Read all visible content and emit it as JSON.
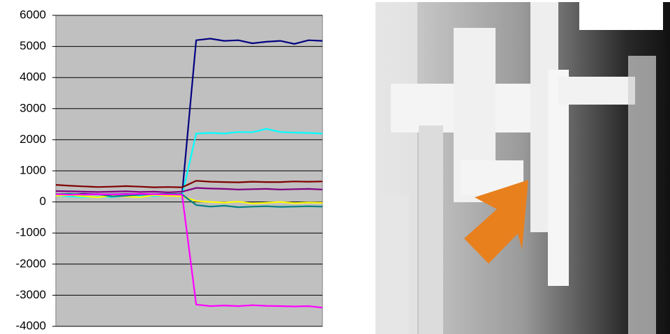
{
  "chart_data": {
    "type": "line",
    "categories": [
      null,
      null,
      null,
      null,
      null,
      null,
      null,
      null,
      null,
      null,
      null,
      null,
      null,
      null,
      null,
      null,
      null,
      null,
      null,
      null
    ],
    "series": [
      {
        "color": "#000080",
        "values": [
          250,
          240,
          260,
          250,
          245,
          255,
          250,
          240,
          260,
          250,
          5200,
          5250,
          5180,
          5200,
          5100,
          5150,
          5180,
          5080,
          5200,
          5180
        ]
      },
      {
        "color": "#00ffff",
        "values": [
          200,
          180,
          150,
          170,
          160,
          200,
          180,
          190,
          210,
          200,
          2200,
          2220,
          2200,
          2250,
          2240,
          2350,
          2250,
          2230,
          2220,
          2200
        ]
      },
      {
        "color": "#800000",
        "values": [
          550,
          520,
          500,
          480,
          490,
          510,
          490,
          470,
          480,
          470,
          680,
          650,
          640,
          630,
          650,
          640,
          640,
          660,
          650,
          660
        ]
      },
      {
        "color": "#800080",
        "values": [
          350,
          340,
          330,
          320,
          330,
          340,
          320,
          330,
          310,
          330,
          450,
          430,
          420,
          400,
          410,
          420,
          400,
          410,
          420,
          400
        ]
      },
      {
        "color": "#ffff00",
        "values": [
          200,
          220,
          180,
          150,
          200,
          180,
          150,
          220,
          200,
          180,
          30,
          0,
          -20,
          10,
          -50,
          -30,
          0,
          -40,
          -20,
          -30
        ]
      },
      {
        "color": "#008080",
        "values": [
          250,
          260,
          230,
          250,
          180,
          200,
          230,
          250,
          260,
          240,
          -100,
          -150,
          -120,
          -170,
          -150,
          -140,
          -160,
          -150,
          -140,
          -150
        ]
      },
      {
        "color": "#ff00ff",
        "values": [
          250,
          230,
          240,
          250,
          240,
          250,
          260,
          250,
          240,
          230,
          -3300,
          -3350,
          -3330,
          -3350,
          -3320,
          -3340,
          -3350,
          -3360,
          -3350,
          -3400
        ]
      }
    ],
    "ylim": [
      -4000,
      6000
    ],
    "yticks": [
      -4000,
      -3000,
      -2000,
      -1000,
      0,
      1000,
      2000,
      3000,
      4000,
      5000,
      6000
    ],
    "grid": true
  }
}
